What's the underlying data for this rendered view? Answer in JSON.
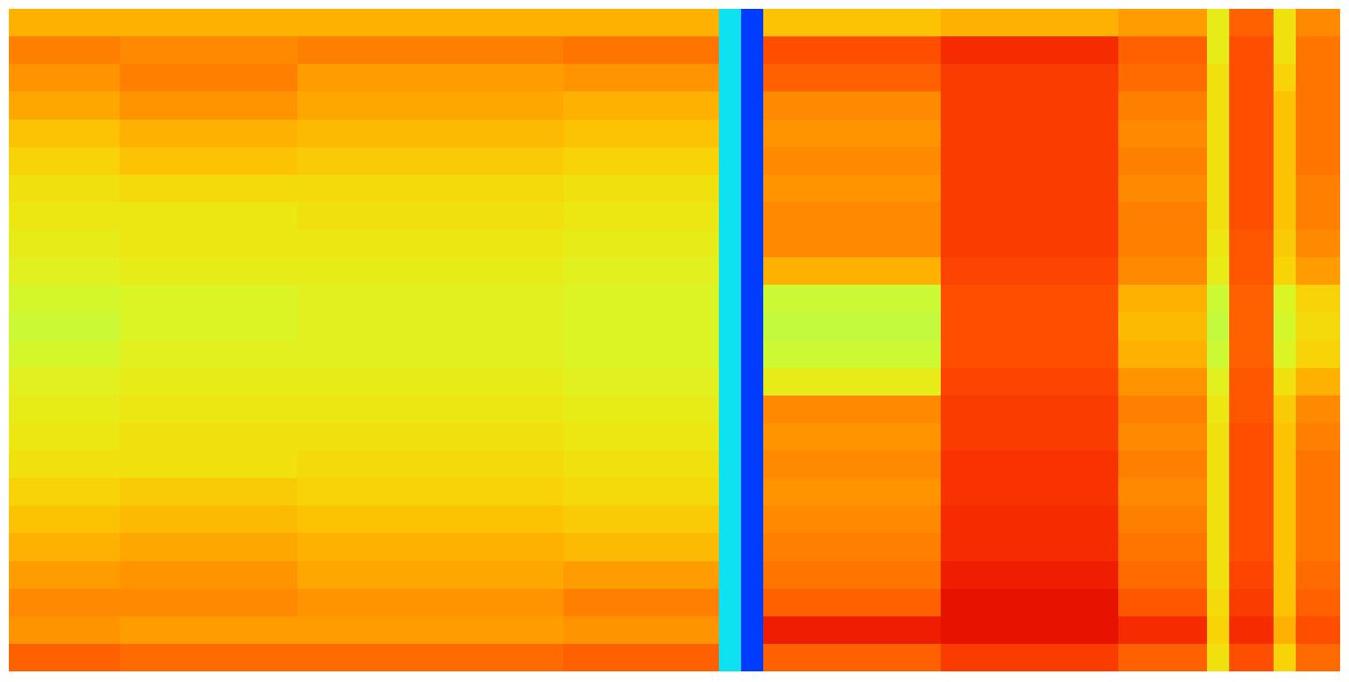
{
  "chart_data": {
    "type": "heatmap",
    "color": "jet",
    "zlim": [
      0,
      100
    ],
    "tick_labels": false,
    "cells": [
      [
        70,
        70,
        70,
        70,
        70,
        70,
        70,
        70,
        70,
        70,
        70,
        70,
        70,
        70,
        70,
        70,
        70,
        70,
        70,
        70,
        70,
        70,
        70,
        70,
        70,
        70,
        70,
        70,
        70,
        70,
        70,
        70,
        36,
        18,
        68,
        68,
        68,
        68,
        68,
        68,
        68,
        68,
        70,
        70,
        70,
        70,
        70,
        70,
        70,
        70,
        72,
        72,
        72,
        72,
        62,
        78,
        78,
        64,
        74,
        74
      ],
      [
        75,
        75,
        75,
        75,
        75,
        74,
        74,
        74,
        74,
        74,
        74,
        74,
        74,
        75,
        75,
        75,
        75,
        75,
        75,
        75,
        75,
        75,
        75,
        75,
        75,
        76,
        76,
        76,
        76,
        76,
        76,
        76,
        36,
        18,
        80,
        80,
        80,
        80,
        80,
        80,
        80,
        80,
        84,
        84,
        84,
        84,
        84,
        84,
        84,
        84,
        78,
        78,
        78,
        78,
        62,
        80,
        80,
        64,
        76,
        76
      ],
      [
        73,
        73,
        73,
        73,
        73,
        75,
        75,
        75,
        75,
        75,
        75,
        75,
        75,
        72,
        72,
        72,
        72,
        72,
        72,
        72,
        72,
        72,
        72,
        72,
        72,
        73,
        73,
        73,
        73,
        73,
        73,
        73,
        36,
        18,
        78,
        78,
        78,
        78,
        78,
        78,
        78,
        78,
        82,
        82,
        82,
        82,
        82,
        82,
        82,
        82,
        77,
        77,
        77,
        77,
        64,
        80,
        80,
        66,
        76,
        76
      ],
      [
        71,
        71,
        71,
        71,
        71,
        73,
        73,
        73,
        73,
        73,
        73,
        73,
        73,
        71,
        71,
        71,
        71,
        71,
        71,
        71,
        71,
        71,
        71,
        71,
        71,
        70,
        70,
        70,
        70,
        70,
        70,
        70,
        36,
        18,
        74,
        74,
        74,
        74,
        74,
        74,
        74,
        74,
        82,
        82,
        82,
        82,
        82,
        82,
        82,
        82,
        75,
        75,
        75,
        75,
        64,
        80,
        80,
        68,
        76,
        76
      ],
      [
        68,
        68,
        68,
        68,
        68,
        70,
        70,
        70,
        70,
        70,
        70,
        70,
        70,
        69,
        69,
        69,
        69,
        69,
        69,
        69,
        69,
        69,
        69,
        69,
        69,
        68,
        68,
        68,
        68,
        68,
        68,
        68,
        36,
        18,
        73,
        73,
        73,
        73,
        73,
        73,
        73,
        73,
        82,
        82,
        82,
        82,
        82,
        82,
        82,
        82,
        74,
        74,
        74,
        74,
        64,
        80,
        80,
        68,
        76,
        76
      ],
      [
        66,
        66,
        66,
        66,
        66,
        68,
        68,
        68,
        68,
        68,
        68,
        68,
        68,
        67,
        67,
        67,
        67,
        67,
        67,
        67,
        67,
        67,
        67,
        67,
        67,
        66,
        66,
        66,
        66,
        66,
        66,
        66,
        36,
        18,
        74,
        74,
        74,
        74,
        74,
        74,
        74,
        74,
        82,
        82,
        82,
        82,
        82,
        82,
        82,
        82,
        75,
        75,
        75,
        75,
        64,
        80,
        80,
        68,
        76,
        76
      ],
      [
        64,
        64,
        64,
        64,
        64,
        65,
        65,
        65,
        65,
        65,
        65,
        65,
        65,
        65,
        65,
        65,
        65,
        65,
        65,
        65,
        65,
        65,
        65,
        65,
        65,
        64,
        64,
        64,
        64,
        64,
        64,
        64,
        36,
        18,
        73,
        73,
        73,
        73,
        73,
        73,
        73,
        73,
        82,
        82,
        82,
        82,
        82,
        82,
        82,
        82,
        74,
        74,
        74,
        74,
        64,
        80,
        80,
        68,
        75,
        75
      ],
      [
        63,
        63,
        63,
        63,
        63,
        63,
        63,
        63,
        63,
        63,
        63,
        63,
        63,
        64,
        64,
        64,
        64,
        64,
        64,
        64,
        64,
        64,
        64,
        64,
        64,
        63,
        63,
        63,
        63,
        63,
        63,
        63,
        36,
        18,
        74,
        74,
        74,
        74,
        74,
        74,
        74,
        74,
        82,
        82,
        82,
        82,
        82,
        82,
        82,
        82,
        75,
        75,
        75,
        75,
        64,
        80,
        80,
        68,
        75,
        75
      ],
      [
        62,
        62,
        62,
        62,
        62,
        63,
        63,
        63,
        63,
        63,
        63,
        63,
        63,
        63,
        63,
        63,
        63,
        63,
        63,
        63,
        63,
        63,
        63,
        63,
        63,
        62,
        62,
        62,
        62,
        62,
        62,
        62,
        36,
        18,
        74,
        74,
        74,
        74,
        74,
        74,
        74,
        74,
        82,
        82,
        82,
        82,
        82,
        82,
        82,
        82,
        75,
        75,
        75,
        75,
        63,
        79,
        79,
        67,
        74,
        74
      ],
      [
        61,
        61,
        61,
        61,
        61,
        62,
        62,
        62,
        62,
        62,
        62,
        62,
        62,
        62,
        62,
        62,
        62,
        62,
        62,
        62,
        62,
        62,
        62,
        62,
        62,
        61,
        61,
        61,
        61,
        61,
        61,
        61,
        36,
        18,
        70,
        70,
        70,
        70,
        70,
        70,
        70,
        70,
        81,
        81,
        81,
        81,
        81,
        81,
        81,
        81,
        74,
        74,
        74,
        74,
        62,
        79,
        79,
        66,
        72,
        72
      ],
      [
        59,
        59,
        59,
        59,
        59,
        60,
        60,
        60,
        60,
        60,
        60,
        60,
        60,
        61,
        61,
        61,
        61,
        61,
        61,
        61,
        61,
        61,
        61,
        61,
        61,
        60,
        60,
        60,
        60,
        60,
        60,
        60,
        36,
        18,
        58,
        58,
        58,
        58,
        58,
        58,
        58,
        58,
        80,
        80,
        80,
        80,
        80,
        80,
        80,
        80,
        70,
        70,
        70,
        70,
        58,
        78,
        78,
        60,
        66,
        66
      ],
      [
        58,
        58,
        58,
        58,
        58,
        60,
        60,
        60,
        60,
        60,
        60,
        60,
        60,
        61,
        61,
        61,
        61,
        61,
        61,
        61,
        61,
        61,
        61,
        61,
        61,
        60,
        60,
        60,
        60,
        60,
        60,
        60,
        36,
        18,
        57,
        57,
        57,
        57,
        57,
        57,
        57,
        57,
        80,
        80,
        80,
        80,
        80,
        80,
        80,
        80,
        69,
        69,
        69,
        69,
        57,
        78,
        78,
        59,
        65,
        65
      ],
      [
        59,
        59,
        59,
        59,
        59,
        61,
        61,
        61,
        61,
        61,
        61,
        61,
        61,
        61,
        61,
        61,
        61,
        61,
        61,
        61,
        61,
        61,
        61,
        61,
        61,
        60,
        60,
        60,
        60,
        60,
        60,
        60,
        36,
        18,
        58,
        58,
        58,
        58,
        58,
        58,
        58,
        58,
        80,
        80,
        80,
        80,
        80,
        80,
        80,
        80,
        70,
        70,
        70,
        70,
        58,
        78,
        78,
        60,
        66,
        66
      ],
      [
        61,
        61,
        61,
        61,
        61,
        62,
        62,
        62,
        62,
        62,
        62,
        62,
        62,
        62,
        62,
        62,
        62,
        62,
        62,
        62,
        62,
        62,
        62,
        62,
        62,
        61,
        61,
        61,
        61,
        61,
        61,
        61,
        36,
        18,
        62,
        62,
        62,
        62,
        62,
        62,
        62,
        62,
        81,
        81,
        81,
        81,
        81,
        81,
        81,
        81,
        73,
        73,
        73,
        73,
        61,
        79,
        79,
        64,
        70,
        70
      ],
      [
        62,
        62,
        62,
        62,
        62,
        63,
        63,
        63,
        63,
        63,
        63,
        63,
        63,
        63,
        63,
        63,
        63,
        63,
        63,
        63,
        63,
        63,
        63,
        63,
        63,
        62,
        62,
        62,
        62,
        62,
        62,
        62,
        36,
        18,
        74,
        74,
        74,
        74,
        74,
        74,
        74,
        74,
        82,
        82,
        82,
        82,
        82,
        82,
        82,
        82,
        75,
        75,
        75,
        75,
        63,
        79,
        79,
        67,
        74,
        74
      ],
      [
        63,
        63,
        63,
        63,
        63,
        64,
        64,
        64,
        64,
        64,
        64,
        64,
        64,
        64,
        64,
        64,
        64,
        64,
        64,
        64,
        64,
        64,
        64,
        64,
        64,
        63,
        63,
        63,
        63,
        63,
        63,
        63,
        36,
        18,
        73,
        73,
        73,
        73,
        73,
        73,
        73,
        73,
        82,
        82,
        82,
        82,
        82,
        82,
        82,
        82,
        74,
        74,
        74,
        74,
        64,
        80,
        80,
        68,
        75,
        75
      ],
      [
        64,
        64,
        64,
        64,
        64,
        64,
        64,
        64,
        64,
        64,
        64,
        64,
        64,
        65,
        65,
        65,
        65,
        65,
        65,
        65,
        65,
        65,
        65,
        65,
        65,
        64,
        64,
        64,
        64,
        64,
        64,
        64,
        36,
        18,
        74,
        74,
        74,
        74,
        74,
        74,
        74,
        74,
        83,
        83,
        83,
        83,
        83,
        83,
        83,
        83,
        75,
        75,
        75,
        75,
        64,
        80,
        80,
        68,
        76,
        76
      ],
      [
        66,
        66,
        66,
        66,
        66,
        67,
        67,
        67,
        67,
        67,
        67,
        67,
        67,
        66,
        66,
        66,
        66,
        66,
        66,
        66,
        66,
        66,
        66,
        66,
        66,
        65,
        65,
        65,
        65,
        65,
        65,
        65,
        36,
        18,
        73,
        73,
        73,
        73,
        73,
        73,
        73,
        73,
        83,
        83,
        83,
        83,
        83,
        83,
        83,
        83,
        74,
        74,
        74,
        74,
        64,
        80,
        80,
        68,
        76,
        76
      ],
      [
        68,
        68,
        68,
        68,
        68,
        69,
        69,
        69,
        69,
        69,
        69,
        69,
        69,
        68,
        68,
        68,
        68,
        68,
        68,
        68,
        68,
        68,
        68,
        68,
        68,
        67,
        67,
        67,
        67,
        67,
        67,
        67,
        36,
        18,
        74,
        74,
        74,
        74,
        74,
        74,
        74,
        74,
        84,
        84,
        84,
        84,
        84,
        84,
        84,
        84,
        75,
        75,
        75,
        75,
        64,
        80,
        80,
        68,
        76,
        76
      ],
      [
        70,
        70,
        70,
        70,
        70,
        71,
        71,
        71,
        71,
        71,
        71,
        71,
        71,
        70,
        70,
        70,
        70,
        70,
        70,
        70,
        70,
        70,
        70,
        70,
        70,
        69,
        69,
        69,
        69,
        69,
        69,
        69,
        36,
        18,
        75,
        75,
        75,
        75,
        75,
        75,
        75,
        75,
        84,
        84,
        84,
        84,
        84,
        84,
        84,
        84,
        76,
        76,
        76,
        76,
        64,
        80,
        80,
        68,
        76,
        76
      ],
      [
        72,
        72,
        72,
        72,
        72,
        73,
        73,
        73,
        73,
        73,
        73,
        73,
        73,
        71,
        71,
        71,
        71,
        71,
        71,
        71,
        71,
        71,
        71,
        71,
        71,
        72,
        72,
        72,
        72,
        72,
        72,
        72,
        36,
        18,
        76,
        76,
        76,
        76,
        76,
        76,
        76,
        76,
        86,
        86,
        86,
        86,
        86,
        86,
        86,
        86,
        77,
        77,
        77,
        77,
        64,
        81,
        81,
        68,
        77,
        77
      ],
      [
        74,
        74,
        74,
        74,
        74,
        74,
        74,
        74,
        74,
        74,
        74,
        74,
        74,
        73,
        73,
        73,
        73,
        73,
        73,
        73,
        73,
        73,
        73,
        73,
        73,
        75,
        75,
        75,
        75,
        75,
        75,
        75,
        36,
        18,
        78,
        78,
        78,
        78,
        78,
        78,
        78,
        78,
        88,
        88,
        88,
        88,
        88,
        88,
        88,
        88,
        79,
        79,
        79,
        79,
        65,
        82,
        82,
        68,
        78,
        78
      ],
      [
        73,
        73,
        73,
        73,
        73,
        72,
        72,
        72,
        72,
        72,
        72,
        72,
        72,
        72,
        72,
        72,
        72,
        72,
        72,
        72,
        72,
        72,
        72,
        72,
        72,
        73,
        73,
        73,
        73,
        73,
        73,
        73,
        36,
        18,
        86,
        86,
        86,
        86,
        86,
        86,
        86,
        86,
        88,
        88,
        88,
        88,
        88,
        88,
        88,
        88,
        84,
        84,
        84,
        84,
        66,
        84,
        84,
        70,
        80,
        80
      ],
      [
        78,
        78,
        78,
        78,
        78,
        77,
        77,
        77,
        77,
        77,
        77,
        77,
        77,
        77,
        77,
        77,
        77,
        77,
        77,
        77,
        77,
        77,
        77,
        77,
        77,
        78,
        78,
        78,
        78,
        78,
        78,
        78,
        36,
        18,
        78,
        78,
        78,
        78,
        78,
        78,
        78,
        78,
        82,
        82,
        82,
        82,
        82,
        82,
        82,
        82,
        78,
        78,
        78,
        78,
        64,
        80,
        80,
        66,
        77,
        77
      ]
    ]
  }
}
